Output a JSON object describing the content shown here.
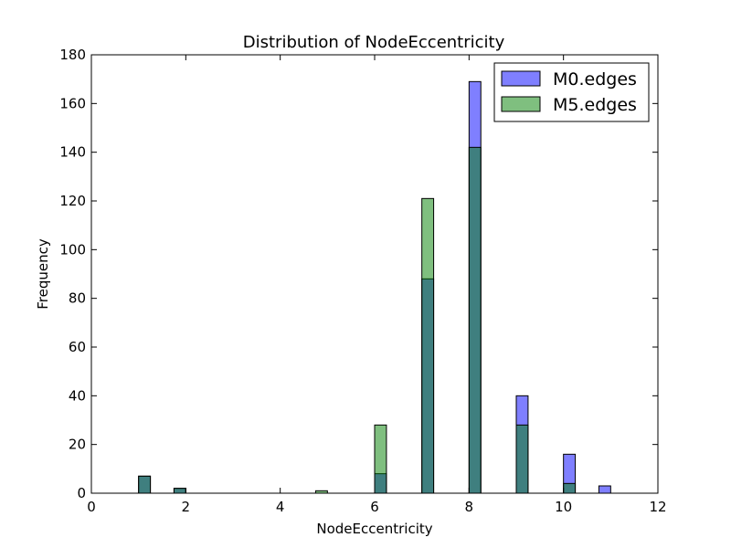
{
  "chart_data": {
    "type": "bar",
    "title": "Distribution of NodeEccentricity",
    "xlabel": "NodeEccentricity",
    "ylabel": "Frequency",
    "xlim": [
      0,
      12
    ],
    "ylim": [
      0,
      180
    ],
    "xticks": [
      "0",
      "2",
      "4",
      "6",
      "8",
      "10",
      "12"
    ],
    "yticks": [
      "0",
      "20",
      "40",
      "60",
      "80",
      "100",
      "120",
      "140",
      "160",
      "180"
    ],
    "grid": false,
    "legend_position": "top-right",
    "bin_width": 0.25,
    "series": [
      {
        "name": "M0.edges",
        "color": "#0000ff",
        "alpha": 0.5,
        "x": [
          1,
          1.75,
          6,
          7,
          8,
          9,
          10,
          10.75
        ],
        "values": [
          7,
          2,
          8,
          88,
          169,
          40,
          16,
          3
        ]
      },
      {
        "name": "M5.edges",
        "color": "#008000",
        "alpha": 0.5,
        "x": [
          1,
          1.75,
          4.75,
          6,
          7,
          8,
          9,
          10
        ],
        "values": [
          7,
          2,
          1,
          28,
          121,
          142,
          28,
          4
        ]
      }
    ]
  }
}
